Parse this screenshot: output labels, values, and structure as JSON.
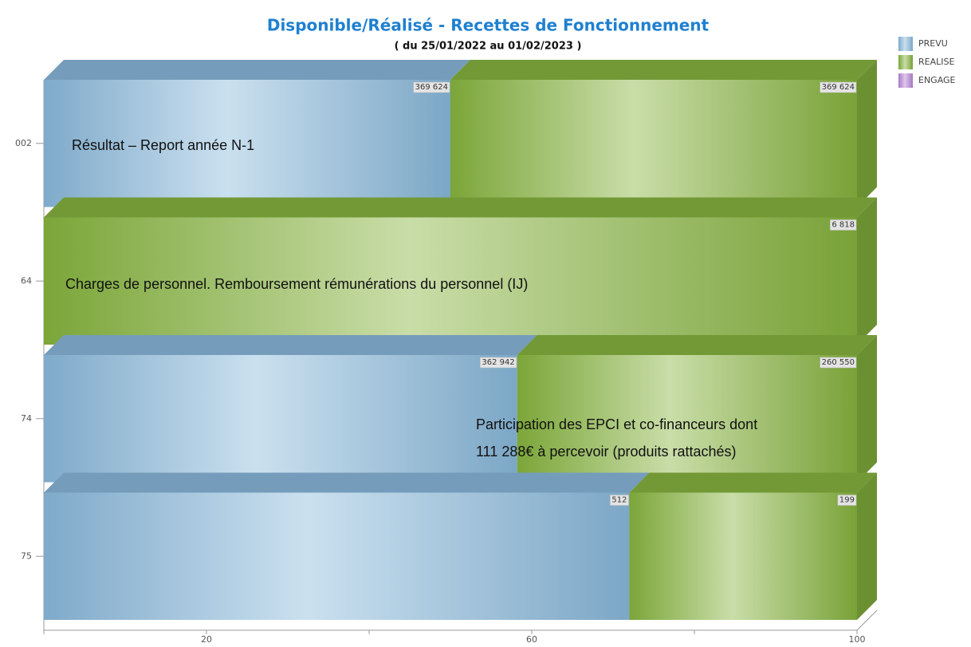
{
  "chart_data": {
    "type": "bar",
    "orientation": "horizontal",
    "stacking": "percent",
    "title": "Disponible/Réalisé - Recettes de Fonctionnement",
    "subtitle": "( du 25/01/2022 au 01/02/2023 )",
    "categories": [
      "002",
      "64",
      "74",
      "75"
    ],
    "series": [
      {
        "name": "PREVU",
        "color": "#8ab9dc",
        "values": [
          369624,
          null,
          362942,
          512
        ],
        "value_labels": [
          "369 624",
          null,
          "362 942",
          "512"
        ]
      },
      {
        "name": "REALISE",
        "color": "#86b43e",
        "values": [
          369624,
          6818,
          260550,
          199
        ],
        "value_labels": [
          "369 624",
          "6 818",
          "260 550",
          "199"
        ]
      },
      {
        "name": "ENGAGE",
        "color": "#b784d6",
        "values": [
          null,
          null,
          null,
          null
        ]
      }
    ],
    "xlim": [
      0,
      100
    ],
    "xticks": [
      20,
      60,
      100
    ],
    "xminorticks": [
      0,
      40,
      80
    ],
    "legend": "top-right",
    "annotations": [
      "Résultat – Report année N-1",
      "Charges de personnel. Remboursement rémunérations du personnel (IJ)",
      "Participation des EPCI et co-financeurs dont",
      "111 288€ à percevoir (produits rattachés)"
    ]
  }
}
